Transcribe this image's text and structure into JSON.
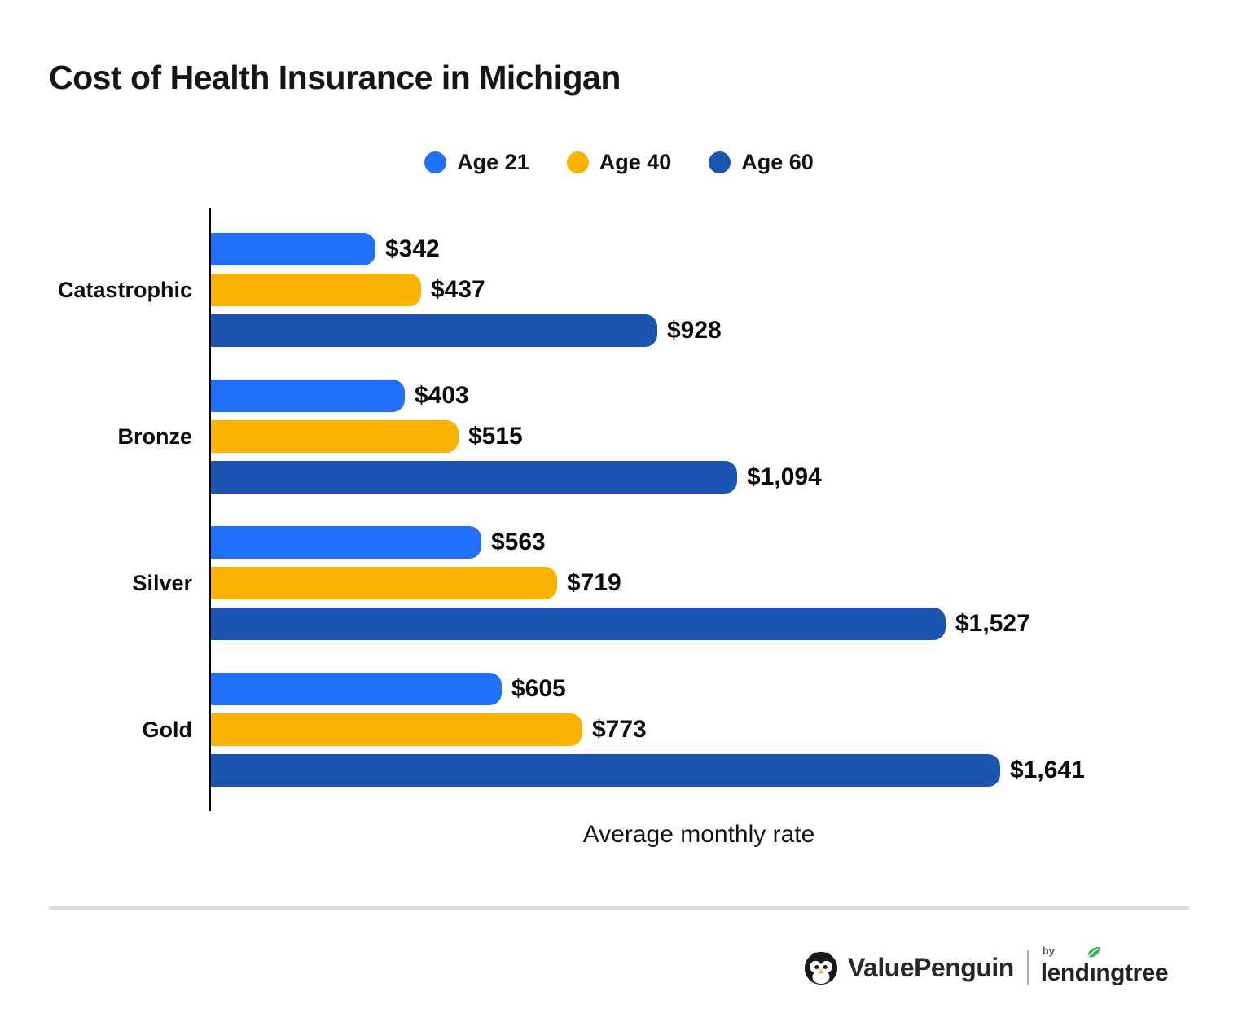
{
  "title": "Cost of Health Insurance in Michigan",
  "legend": [
    {
      "label": "Age 21",
      "color": "#2170fa"
    },
    {
      "label": "Age 40",
      "color": "#fab400"
    },
    {
      "label": "Age 60",
      "color": "#1c54b2"
    }
  ],
  "chart_data": {
    "type": "bar",
    "orientation": "horizontal",
    "title": "Cost of Health Insurance in Michigan",
    "xlabel": "Average monthly rate",
    "ylabel": "",
    "categories": [
      "Catastrophic",
      "Bronze",
      "Silver",
      "Gold"
    ],
    "series": [
      {
        "name": "Age 21",
        "color": "#2170fa",
        "values": [
          342,
          403,
          563,
          605
        ],
        "labels": [
          "$342",
          "$403",
          "$563",
          "$605"
        ]
      },
      {
        "name": "Age 40",
        "color": "#fab400",
        "values": [
          437,
          515,
          719,
          773
        ],
        "labels": [
          "$437",
          "$515",
          "$719",
          "$773"
        ]
      },
      {
        "name": "Age 60",
        "color": "#1c54b2",
        "values": [
          928,
          1094,
          1527,
          1641
        ],
        "labels": [
          "$928",
          "$1,094",
          "$1,527",
          "$1,641"
        ]
      }
    ],
    "xlim": [
      0,
      2040
    ],
    "grid": false,
    "legend_position": "top-center",
    "value_labels_shown": true
  },
  "footer": {
    "brand": "ValuePenguin",
    "by_label": "by",
    "partner_prefix": "lend",
    "partner_i": "ı",
    "partner_suffix": "ngtree",
    "leaf_color": "#36b45a",
    "icon_color": "#17181a",
    "beak_color": "#f5a623"
  }
}
